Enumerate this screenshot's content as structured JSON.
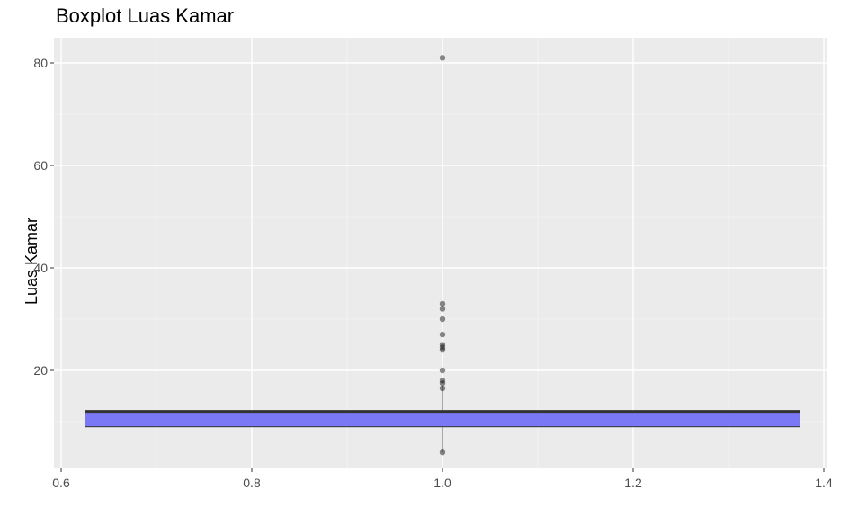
{
  "chart_data": {
    "type": "boxplot",
    "title": "Boxplot Luas Kamar",
    "xlabel": "",
    "ylabel": "Luas Kamar",
    "xlim": [
      0.6,
      1.4
    ],
    "ylim": [
      0,
      84
    ],
    "x_ticks": [
      0.6,
      0.8,
      1.0,
      1.2,
      1.4
    ],
    "x_tick_labels": [
      "0.6",
      "0.8",
      "1.0",
      "1.2",
      "1.4"
    ],
    "y_ticks": [
      20,
      40,
      60,
      80
    ],
    "y_tick_labels": [
      "20",
      "40",
      "60",
      "80"
    ],
    "grid": true,
    "box": {
      "x": 1.0,
      "x_left": 0.625,
      "x_right": 1.375,
      "q1": 9,
      "median": 12,
      "q3": 12,
      "whisker_low": 4,
      "whisker_high": 17,
      "fill": "#7b78f6",
      "edge": "#333333"
    },
    "outliers": [
      4,
      16.5,
      17.5,
      18,
      20,
      24,
      24.5,
      25,
      27,
      30,
      32,
      33,
      81
    ]
  }
}
